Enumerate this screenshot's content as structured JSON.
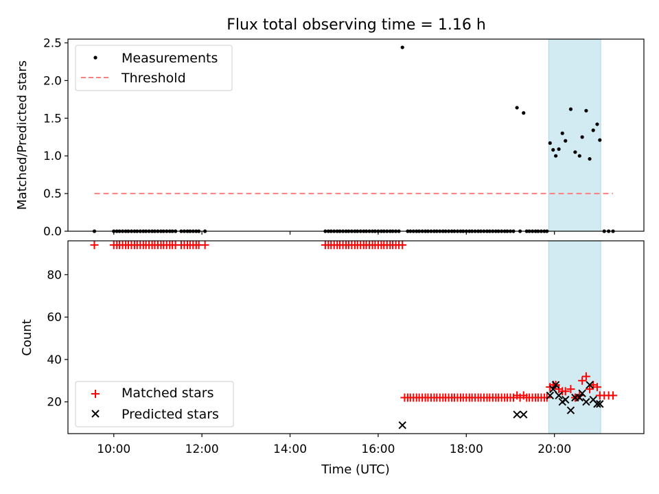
{
  "colors": {
    "measurements": "#000000",
    "threshold": "#ff7f7f",
    "matched": "#ff0000",
    "predicted": "#000000",
    "shade": "#add8e6"
  },
  "chart_data": [
    {
      "type": "scatter",
      "title": "Flux total observing time = 1.16 h",
      "xlabel": "",
      "ylabel": "Matched/Predicted stars",
      "xlim_hours": [
        8.96,
        22.03
      ],
      "ylim": [
        0,
        2.55
      ],
      "yticks": [
        0.0,
        0.5,
        1.0,
        1.5,
        2.0,
        2.5
      ],
      "ytick_labels": [
        "0.0",
        "0.5",
        "1.0",
        "1.5",
        "2.0",
        "2.5"
      ],
      "grid": false,
      "legend_position": "upper-left",
      "legend": [
        {
          "label": "Measurements",
          "marker": "dot"
        },
        {
          "label": "Threshold",
          "marker": "dashed-line"
        }
      ],
      "shaded_span_hours": [
        19.87,
        21.05
      ],
      "threshold": {
        "value": 0.5,
        "x_range_hours": [
          9.56,
          21.33
        ]
      },
      "series": [
        {
          "name": "Measurements",
          "x_hours": [
            9.56,
            10.0,
            10.07,
            10.13,
            10.2,
            10.27,
            10.33,
            10.4,
            10.47,
            10.53,
            10.6,
            10.67,
            10.73,
            10.8,
            10.87,
            10.93,
            11.0,
            11.07,
            11.13,
            11.2,
            11.27,
            11.33,
            11.4,
            11.53,
            11.6,
            11.67,
            11.73,
            11.8,
            11.87,
            11.93,
            12.07,
            14.8,
            14.87,
            14.93,
            15.0,
            15.07,
            15.13,
            15.2,
            15.27,
            15.33,
            15.4,
            15.47,
            15.53,
            15.6,
            15.67,
            15.73,
            15.8,
            15.87,
            15.93,
            16.0,
            16.07,
            16.13,
            16.2,
            16.27,
            16.33,
            16.4,
            16.47,
            16.55,
            16.67,
            16.73,
            16.8,
            16.87,
            16.93,
            17.0,
            17.07,
            17.13,
            17.2,
            17.27,
            17.33,
            17.4,
            17.47,
            17.53,
            17.6,
            17.67,
            17.73,
            17.8,
            17.87,
            17.93,
            18.0,
            18.07,
            18.13,
            18.2,
            18.27,
            18.33,
            18.4,
            18.47,
            18.53,
            18.6,
            18.67,
            18.73,
            18.8,
            18.87,
            18.93,
            19.0,
            19.07,
            19.15,
            19.22,
            19.3,
            19.37,
            19.43,
            19.5,
            19.57,
            19.63,
            19.7,
            19.77,
            19.83,
            19.9,
            19.97,
            20.03,
            20.1,
            20.18,
            20.25,
            20.37,
            20.47,
            20.57,
            20.63,
            20.72,
            20.8,
            20.88,
            20.97,
            21.03,
            21.13,
            21.23,
            21.33
          ],
          "y": [
            0,
            0,
            0,
            0,
            0,
            0,
            0,
            0,
            0,
            0,
            0,
            0,
            0,
            0,
            0,
            0,
            0,
            0,
            0,
            0,
            0,
            0,
            0,
            0,
            0,
            0,
            0,
            0,
            0,
            0,
            0,
            0,
            0,
            0,
            0,
            0,
            0,
            0,
            0,
            0,
            0,
            0,
            0,
            0,
            0,
            0,
            0,
            0,
            0,
            0,
            0,
            0,
            0,
            0,
            0,
            0,
            0,
            2.44,
            0,
            0,
            0,
            0,
            0,
            0,
            0,
            0,
            0,
            0,
            0,
            0,
            0,
            0,
            0,
            0,
            0,
            0,
            0,
            0,
            0,
            0,
            0,
            0,
            0,
            0,
            0,
            0,
            0,
            0,
            0,
            0,
            0,
            0,
            0,
            0,
            0,
            1.64,
            0,
            1.57,
            0,
            0,
            0,
            0,
            0,
            0,
            0,
            0,
            1.17,
            1.08,
            1.0,
            1.09,
            1.3,
            1.2,
            1.62,
            1.05,
            1.0,
            1.25,
            1.6,
            0.96,
            1.34,
            1.42,
            1.21,
            0,
            0,
            0
          ]
        }
      ]
    },
    {
      "type": "scatter",
      "xlabel": "Time (UTC)",
      "ylabel": "Count",
      "xlim_hours": [
        8.96,
        22.03
      ],
      "xticks_hours": [
        10,
        12,
        14,
        16,
        18,
        20
      ],
      "xtick_labels": [
        "10:00",
        "12:00",
        "14:00",
        "16:00",
        "18:00",
        "20:00"
      ],
      "ylim": [
        5,
        96
      ],
      "yticks": [
        20,
        40,
        60,
        80
      ],
      "ytick_labels": [
        "20",
        "40",
        "60",
        "80"
      ],
      "grid": false,
      "legend_position": "lower-left",
      "legend": [
        {
          "label": "Matched stars",
          "marker": "plus"
        },
        {
          "label": "Predicted stars",
          "marker": "x"
        }
      ],
      "shaded_span_hours": [
        19.87,
        21.05
      ],
      "series": [
        {
          "name": "Matched stars",
          "x_hours": [
            9.56,
            10.0,
            10.07,
            10.13,
            10.2,
            10.27,
            10.33,
            10.4,
            10.47,
            10.53,
            10.6,
            10.67,
            10.73,
            10.8,
            10.87,
            10.93,
            11.0,
            11.07,
            11.13,
            11.2,
            11.27,
            11.33,
            11.4,
            11.53,
            11.6,
            11.67,
            11.73,
            11.8,
            11.87,
            11.93,
            12.07,
            14.8,
            14.87,
            14.93,
            15.0,
            15.07,
            15.13,
            15.2,
            15.27,
            15.33,
            15.4,
            15.47,
            15.53,
            15.6,
            15.67,
            15.73,
            15.8,
            15.87,
            15.93,
            16.0,
            16.07,
            16.13,
            16.2,
            16.27,
            16.33,
            16.4,
            16.47,
            16.55,
            16.6,
            16.67,
            16.73,
            16.8,
            16.87,
            16.93,
            17.0,
            17.07,
            17.13,
            17.2,
            17.27,
            17.33,
            17.4,
            17.47,
            17.53,
            17.6,
            17.67,
            17.73,
            17.8,
            17.87,
            17.93,
            18.0,
            18.07,
            18.13,
            18.2,
            18.27,
            18.33,
            18.4,
            18.47,
            18.53,
            18.6,
            18.67,
            18.73,
            18.8,
            18.87,
            18.93,
            19.0,
            19.07,
            19.15,
            19.22,
            19.3,
            19.37,
            19.43,
            19.5,
            19.57,
            19.63,
            19.7,
            19.77,
            19.83,
            19.9,
            19.97,
            20.03,
            20.1,
            20.18,
            20.25,
            20.37,
            20.47,
            20.57,
            20.63,
            20.72,
            20.8,
            20.88,
            20.97,
            21.03,
            21.13,
            21.23,
            21.33
          ],
          "y": [
            94,
            94,
            94,
            94,
            94,
            94,
            94,
            94,
            94,
            94,
            94,
            94,
            94,
            94,
            94,
            94,
            94,
            94,
            94,
            94,
            94,
            94,
            94,
            94,
            94,
            94,
            94,
            94,
            94,
            94,
            94,
            94,
            94,
            94,
            94,
            94,
            94,
            94,
            94,
            94,
            94,
            94,
            94,
            94,
            94,
            94,
            94,
            94,
            94,
            94,
            94,
            94,
            94,
            94,
            94,
            94,
            94,
            94,
            22,
            22,
            22,
            22,
            22,
            22,
            22,
            22,
            22,
            22,
            22,
            22,
            22,
            22,
            22,
            22,
            22,
            22,
            22,
            22,
            22,
            22,
            22,
            22,
            22,
            22,
            22,
            22,
            22,
            22,
            22,
            22,
            22,
            22,
            22,
            22,
            22,
            22,
            23,
            22,
            23,
            22,
            22,
            22,
            22,
            22,
            22,
            22,
            22,
            27,
            28,
            28,
            26,
            25,
            25,
            26,
            22,
            23,
            30,
            32,
            26,
            28,
            27,
            23,
            23,
            23,
            23
          ]
        },
        {
          "name": "Predicted stars",
          "x_hours": [
            16.55,
            19.15,
            19.3,
            19.9,
            19.97,
            20.03,
            20.1,
            20.18,
            20.25,
            20.37,
            20.47,
            20.57,
            20.63,
            20.72,
            20.8,
            20.88,
            20.97,
            21.03
          ],
          "y": [
            9,
            14,
            14,
            23,
            26,
            28,
            23,
            20,
            21,
            16,
            22,
            22,
            24,
            20,
            28,
            21,
            19,
            19
          ]
        }
      ]
    }
  ]
}
